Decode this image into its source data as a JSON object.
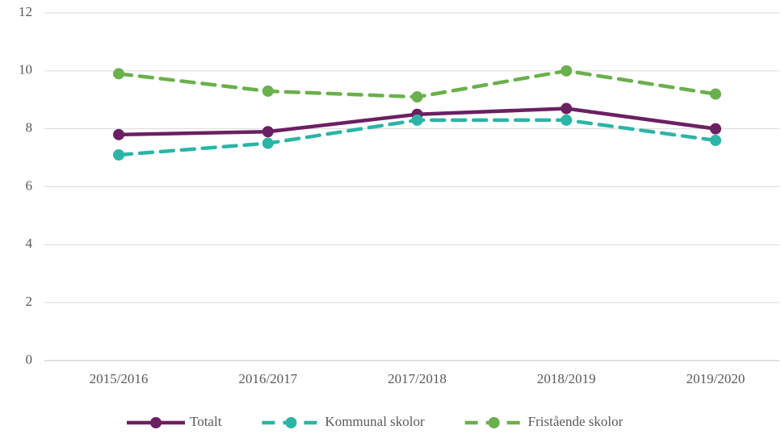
{
  "chart_data": {
    "type": "line",
    "categories": [
      "2015/2016",
      "2016/2017",
      "2017/2018",
      "2018/2019",
      "2019/2020"
    ],
    "series": [
      {
        "name": "Totalt",
        "color": "#6b2062",
        "dashed": false,
        "values": [
          7.8,
          7.9,
          8.5,
          8.7,
          8.0
        ]
      },
      {
        "name": "Kommunal skolor",
        "color": "#2bb5a6",
        "dashed": true,
        "values": [
          7.1,
          7.5,
          8.3,
          8.3,
          7.6
        ]
      },
      {
        "name": "Fristående skolor",
        "color": "#6ab04c",
        "dashed": true,
        "values": [
          9.9,
          9.3,
          9.1,
          10.0,
          9.2
        ]
      }
    ],
    "ylim": [
      0,
      12
    ],
    "yticks": [
      0,
      2,
      4,
      6,
      8,
      10,
      12
    ],
    "grid": true,
    "legend": "bottom"
  }
}
